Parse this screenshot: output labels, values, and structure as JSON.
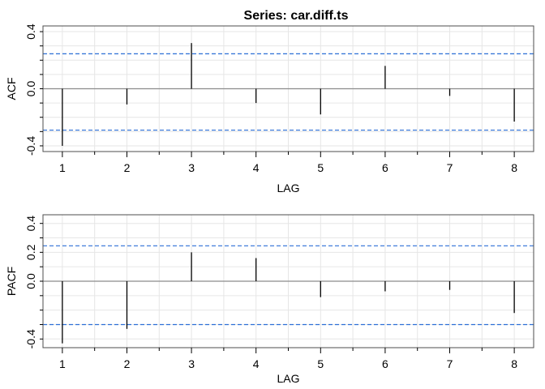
{
  "chart_data": [
    {
      "type": "bar",
      "title": "Series:  car.diff.ts",
      "xlabel": "LAG",
      "ylabel": "ACF",
      "xlim": [
        0.7,
        8.3
      ],
      "ylim": [
        -0.44,
        0.44
      ],
      "x_ticks": [
        "1",
        "2",
        "3",
        "4",
        "5",
        "6",
        "7",
        "8"
      ],
      "y_ticks": [
        "-0.4",
        "0.0",
        "0.4"
      ],
      "y_tick_values": [
        -0.4,
        0.0,
        0.4
      ],
      "grid": true,
      "lags": [
        1,
        2,
        3,
        4,
        5,
        6,
        7,
        8
      ],
      "values": [
        -0.4,
        -0.11,
        0.32,
        -0.1,
        -0.18,
        0.16,
        -0.05,
        -0.23
      ],
      "confidence_bounds": [
        0.245,
        -0.29
      ],
      "colors": {
        "bar": "#000000",
        "bound": "#2c6fd6",
        "zero": "#8c8c8c",
        "grid": "#e6e6e6"
      }
    },
    {
      "type": "bar",
      "title": "",
      "xlabel": "LAG",
      "ylabel": "PACF",
      "xlim": [
        0.7,
        8.3
      ],
      "ylim": [
        -0.46,
        0.46
      ],
      "x_ticks": [
        "1",
        "2",
        "3",
        "4",
        "5",
        "6",
        "7",
        "8"
      ],
      "y_ticks": [
        "-0.4",
        "0.0",
        "0.2",
        "0.4"
      ],
      "y_tick_values": [
        -0.4,
        0.0,
        0.2,
        0.4
      ],
      "grid": true,
      "lags": [
        1,
        2,
        3,
        4,
        5,
        6,
        7,
        8
      ],
      "values": [
        -0.43,
        -0.33,
        0.2,
        0.16,
        -0.11,
        -0.07,
        -0.06,
        -0.22
      ],
      "confidence_bounds": [
        0.245,
        -0.3
      ],
      "colors": {
        "bar": "#000000",
        "bound": "#2c6fd6",
        "zero": "#8c8c8c",
        "grid": "#e6e6e6"
      }
    }
  ]
}
